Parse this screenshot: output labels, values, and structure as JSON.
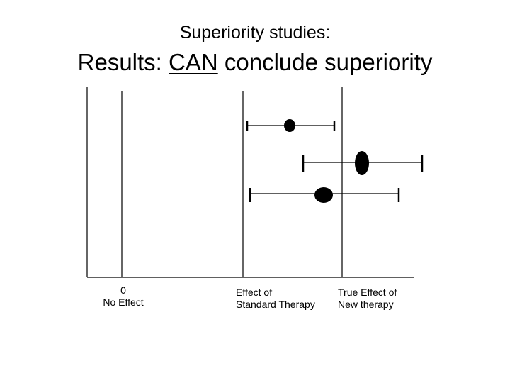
{
  "title": {
    "line1": "Superiority studies:",
    "line2_prefix": "Results: ",
    "line2_emphasis": "CAN",
    "line2_suffix": " conclude superiority"
  },
  "axis_labels": {
    "no_effect_value": "0",
    "no_effect_text": "No Effect",
    "standard_line1": "Effect of",
    "standard_line2": "Standard  Therapy",
    "new_line1": "True Effect of",
    "new_line2": "New therapy"
  },
  "reference_lines": [
    "no-effect",
    "standard-therapy",
    "true-effect-new-therapy"
  ],
  "estimates": [
    {
      "name": "study-1",
      "point": "inside",
      "marker": "small"
    },
    {
      "name": "study-2",
      "point": "right",
      "marker": "large"
    },
    {
      "name": "study-3",
      "point": "center",
      "marker": "medium"
    }
  ],
  "colors": {
    "ink": "#000000",
    "background": "#ffffff"
  }
}
